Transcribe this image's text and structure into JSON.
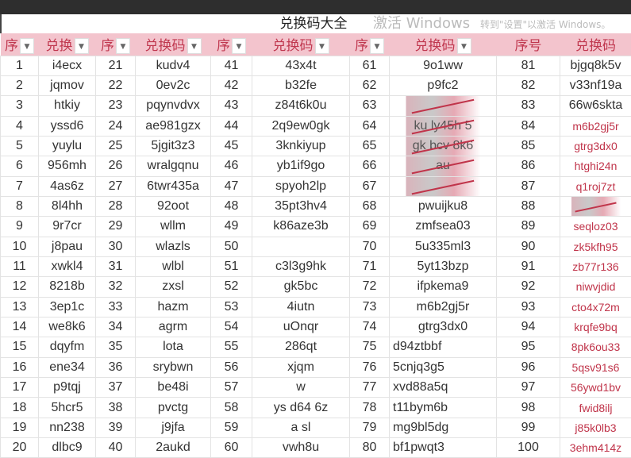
{
  "title": "兑换码大全",
  "headers": [
    {
      "label": "序",
      "filter": true
    },
    {
      "label": "兑换",
      "filter": true
    },
    {
      "label": "序",
      "filter": true
    },
    {
      "label": "兑换码",
      "filter": true
    },
    {
      "label": "序",
      "filter": true
    },
    {
      "label": "兑换码",
      "filter": true
    },
    {
      "label": "序",
      "filter": true
    },
    {
      "label": "兑换码",
      "filter": true
    },
    {
      "label": "序号",
      "filter": false
    },
    {
      "label": "兑换码",
      "filter": false
    }
  ],
  "groups": [
    {
      "codes": [
        "i4ecx",
        "jqmov",
        "htkiy",
        "yssd6",
        "yuylu",
        "956mh",
        "4as6z",
        "8l4hh",
        "9r7cr",
        "j8pau",
        "xwkl4",
        "8218b",
        "3ep1c",
        "we8k6",
        "dqyfm",
        "ene34",
        "p9tqj",
        "5hcr5",
        "nn238",
        "dlbc9"
      ]
    },
    {
      "codes": [
        "kudv4",
        "0ev2c",
        "pqynvdvx",
        "ae981gzx",
        "5jgit3z3",
        "wralgqnu",
        "6twr435a",
        "92oot",
        "wllm",
        "wlazls",
        "wlbl",
        "zxsl",
        "hazm",
        "agrm",
        "lota",
        "srybwn",
        "be48i",
        "pvctg",
        "j9jfa",
        "2aukd"
      ]
    },
    {
      "codes": [
        "43x4t",
        "b32fe",
        "z84t6k0u",
        "2q9ew0gk",
        "3knkiyup",
        "yb1if9go",
        "spyoh2lp",
        "35pt3hv4",
        "k86aze3b",
        "",
        "c3l3g9hk",
        "gk5bc",
        "4iutn",
        "uOnqr",
        "286qt",
        "xjqm",
        "w",
        "ys d64 6z",
        "a sl",
        "vwh8u"
      ],
      "obscured": [
        10,
        16,
        17,
        18,
        19
      ]
    },
    {
      "codes": [
        "9o1ww",
        "p9fc2",
        "",
        "ku ly45h 5",
        "gk bcv 8k6",
        "au",
        "",
        "pwuijku8",
        "zmfsea03",
        "5u335ml3",
        "5yt13bzp",
        "ifpkema9",
        "m6b2gj5r",
        "gtrg3dx0",
        "d94ztbbf",
        "5cnjq3g5",
        "xvd88a5q",
        "t11bym6b",
        "mg9bl5dg",
        "bf1pwqt3"
      ],
      "obscured": [
        63,
        64,
        65,
        66,
        67
      ],
      "left_from": 75
    },
    {
      "codes": [
        "bjgq8k5v",
        "v33nf19a",
        "66w6skta",
        "m6b2gj5r",
        "gtrg3dx0",
        "htghi24n",
        "q1roj7zt",
        "",
        "seqloz03",
        "zk5kfh95",
        "zb77r136",
        "niwvjdid",
        "cto4x72m",
        "krqfe9bq",
        "8pk6ou33",
        "",
        "",
        "",
        "",
        ""
      ],
      "obscured": [
        88
      ],
      "red_from": 84
    }
  ],
  "handwritten_extras": [
    "5qsv91s6",
    "56ywd1bv",
    "fwid8ilj",
    "j85k0lb3",
    "3ehm414z"
  ],
  "watermark": {
    "line1": "激活 Windows",
    "line2": "转到\"设置\"以激活 Windows。"
  },
  "colors": {
    "header_bg": "#f3c4cd",
    "header_text": "#c0384f",
    "handwritten": "#c0344a"
  }
}
